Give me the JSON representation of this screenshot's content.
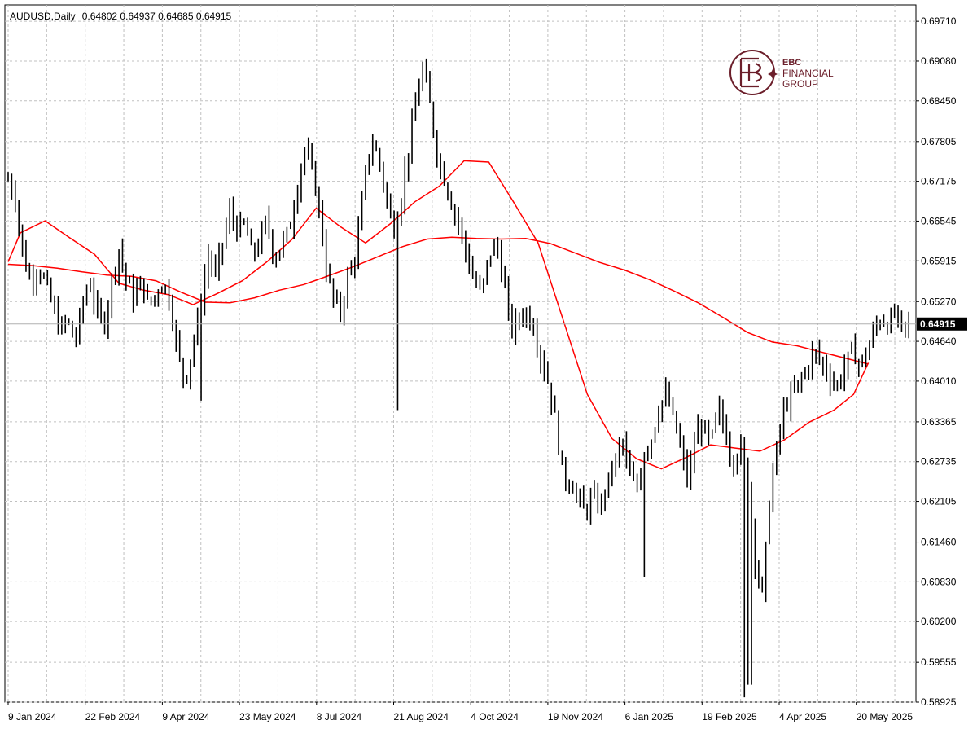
{
  "chart_data": {
    "type": "line",
    "title": "AUDUSD,Daily",
    "ohlc": "0.64802 0.64937 0.64685 0.64915",
    "current_price": 0.64915,
    "current_price_label": "0.64915",
    "ylim": [
      0.58925,
      0.6997
    ],
    "y_ticks": [
      "0.69710",
      "0.69080",
      "0.68450",
      "0.67805",
      "0.67175",
      "0.66545",
      "0.65915",
      "0.65270",
      "0.64640",
      "0.64010",
      "0.63365",
      "0.62735",
      "0.62105",
      "0.61460",
      "0.60830",
      "0.60200",
      "0.59555",
      "0.58925"
    ],
    "x_ticks": [
      "9 Jan 2024",
      "22 Feb 2024",
      "9 Apr 2024",
      "23 May 2024",
      "8 Jul 2024",
      "21 Aug 2024",
      "4 Oct 2024",
      "19 Nov 2024",
      "6 Jan 2025",
      "19 Feb 2025",
      "4 Apr 2025",
      "20 May 2025"
    ],
    "grid": true,
    "colors": {
      "bars": "#000000",
      "ma": "#ff0000",
      "grid": "#c0c0c0",
      "price_tag": "#000000",
      "logo": "#6b1e2a"
    },
    "price_path": [
      [
        0,
        0.672
      ],
      [
        3,
        0.669
      ],
      [
        6,
        0.66
      ],
      [
        9,
        0.656
      ],
      [
        12,
        0.658
      ],
      [
        15,
        0.656
      ],
      [
        18,
        0.652
      ],
      [
        21,
        0.648
      ],
      [
        24,
        0.65
      ],
      [
        27,
        0.646
      ],
      [
        30,
        0.652
      ],
      [
        33,
        0.656
      ],
      [
        36,
        0.651
      ],
      [
        39,
        0.649
      ],
      [
        42,
        0.656
      ],
      [
        45,
        0.661
      ],
      [
        48,
        0.656
      ],
      [
        51,
        0.653
      ],
      [
        54,
        0.656
      ],
      [
        57,
        0.652
      ],
      [
        60,
        0.654
      ],
      [
        63,
        0.656
      ],
      [
        66,
        0.652
      ],
      [
        69,
        0.644
      ],
      [
        72,
        0.64
      ],
      [
        75,
        0.646
      ],
      [
        78,
        0.652
      ],
      [
        81,
        0.66
      ],
      [
        84,
        0.657
      ],
      [
        87,
        0.662
      ],
      [
        90,
        0.667
      ],
      [
        93,
        0.664
      ],
      [
        96,
        0.665
      ],
      [
        99,
        0.66
      ],
      [
        102,
        0.662
      ],
      [
        105,
        0.666
      ],
      [
        108,
        0.659
      ],
      [
        111,
        0.662
      ],
      [
        114,
        0.664
      ],
      [
        117,
        0.67
      ],
      [
        120,
        0.677
      ],
      [
        123,
        0.674
      ],
      [
        126,
        0.668
      ],
      [
        129,
        0.658
      ],
      [
        132,
        0.653
      ],
      [
        135,
        0.651
      ],
      [
        138,
        0.657
      ],
      [
        141,
        0.66
      ],
      [
        144,
        0.67
      ],
      [
        147,
        0.678
      ],
      [
        150,
        0.676
      ],
      [
        153,
        0.67
      ],
      [
        156,
        0.664
      ],
      [
        159,
        0.668
      ],
      [
        162,
        0.676
      ],
      [
        165,
        0.683
      ],
      [
        168,
        0.69
      ],
      [
        171,
        0.684
      ],
      [
        174,
        0.676
      ],
      [
        177,
        0.672
      ],
      [
        180,
        0.668
      ],
      [
        183,
        0.665
      ],
      [
        186,
        0.66
      ],
      [
        189,
        0.656
      ],
      [
        192,
        0.654
      ],
      [
        195,
        0.66
      ],
      [
        198,
        0.662
      ],
      [
        201,
        0.656
      ],
      [
        204,
        0.648
      ],
      [
        207,
        0.65
      ],
      [
        210,
        0.651
      ],
      [
        213,
        0.649
      ],
      [
        216,
        0.644
      ],
      [
        219,
        0.64
      ],
      [
        222,
        0.634
      ],
      [
        225,
        0.625
      ],
      [
        228,
        0.624
      ],
      [
        231,
        0.622
      ],
      [
        234,
        0.619
      ],
      [
        237,
        0.622
      ],
      [
        240,
        0.62
      ],
      [
        243,
        0.624
      ],
      [
        246,
        0.627
      ],
      [
        249,
        0.631
      ],
      [
        252,
        0.625
      ],
      [
        255,
        0.623
      ],
      [
        258,
        0.629
      ],
      [
        261,
        0.631
      ],
      [
        264,
        0.636
      ],
      [
        267,
        0.638
      ],
      [
        270,
        0.634
      ],
      [
        273,
        0.629
      ],
      [
        276,
        0.624
      ],
      [
        279,
        0.632
      ],
      [
        282,
        0.633
      ],
      [
        285,
        0.63
      ],
      [
        288,
        0.636
      ],
      [
        291,
        0.632
      ],
      [
        294,
        0.627
      ],
      [
        297,
        0.63
      ],
      [
        300,
        0.625
      ],
      [
        303,
        0.612
      ],
      [
        306,
        0.606
      ],
      [
        309,
        0.622
      ],
      [
        312,
        0.63
      ],
      [
        315,
        0.636
      ],
      [
        318,
        0.638
      ],
      [
        321,
        0.64
      ],
      [
        324,
        0.642
      ],
      [
        327,
        0.645
      ],
      [
        330,
        0.643
      ],
      [
        333,
        0.641
      ],
      [
        336,
        0.639
      ],
      [
        339,
        0.642
      ],
      [
        342,
        0.645
      ],
      [
        345,
        0.643
      ],
      [
        348,
        0.644
      ],
      [
        351,
        0.648
      ],
      [
        354,
        0.65
      ],
      [
        357,
        0.649
      ],
      [
        360,
        0.651
      ],
      [
        363,
        0.648
      ],
      [
        365,
        0.6491
      ]
    ],
    "series": [
      {
        "name": "",
        "values": [
          [
            0,
            0.6586
          ],
          [
            10,
            0.6584
          ],
          [
            20,
            0.658
          ],
          [
            30,
            0.6574
          ],
          [
            40,
            0.6569
          ],
          [
            50,
            0.6567
          ],
          [
            60,
            0.656
          ],
          [
            70,
            0.6542
          ],
          [
            80,
            0.6526
          ],
          [
            90,
            0.6525
          ],
          [
            100,
            0.6533
          ],
          [
            110,
            0.6545
          ],
          [
            120,
            0.6554
          ],
          [
            130,
            0.6568
          ],
          [
            140,
            0.6582
          ],
          [
            150,
            0.6598
          ],
          [
            160,
            0.6614
          ],
          [
            170,
            0.6626
          ],
          [
            180,
            0.6629
          ],
          [
            190,
            0.6627
          ],
          [
            200,
            0.6626
          ],
          [
            210,
            0.6627
          ],
          [
            220,
            0.6619
          ],
          [
            230,
            0.6604
          ],
          [
            240,
            0.6589
          ],
          [
            250,
            0.6577
          ],
          [
            260,
            0.6562
          ],
          [
            270,
            0.6544
          ],
          [
            280,
            0.6525
          ],
          [
            290,
            0.6502
          ],
          [
            300,
            0.6478
          ],
          [
            310,
            0.6463
          ],
          [
            320,
            0.6457
          ],
          [
            330,
            0.6447
          ],
          [
            340,
            0.6437
          ],
          [
            349,
            0.6428
          ]
        ]
      },
      {
        "name": "",
        "values": [
          [
            0,
            0.659
          ],
          [
            5,
            0.6636
          ],
          [
            15,
            0.6655
          ],
          [
            25,
            0.6628
          ],
          [
            35,
            0.6602
          ],
          [
            45,
            0.6556
          ],
          [
            55,
            0.6545
          ],
          [
            65,
            0.6538
          ],
          [
            75,
            0.6522
          ],
          [
            85,
            0.654
          ],
          [
            95,
            0.656
          ],
          [
            105,
            0.659
          ],
          [
            115,
            0.6625
          ],
          [
            125,
            0.6675
          ],
          [
            135,
            0.6645
          ],
          [
            145,
            0.662
          ],
          [
            155,
            0.665
          ],
          [
            165,
            0.6685
          ],
          [
            175,
            0.671
          ],
          [
            185,
            0.675
          ],
          [
            195,
            0.6748
          ],
          [
            205,
            0.6685
          ],
          [
            215,
            0.662
          ],
          [
            225,
            0.65
          ],
          [
            235,
            0.638
          ],
          [
            245,
            0.631
          ],
          [
            255,
            0.6278
          ],
          [
            265,
            0.6262
          ],
          [
            275,
            0.628
          ],
          [
            285,
            0.63
          ],
          [
            295,
            0.6295
          ],
          [
            305,
            0.629
          ],
          [
            315,
            0.6308
          ],
          [
            325,
            0.6336
          ],
          [
            335,
            0.6355
          ],
          [
            343,
            0.638
          ],
          [
            349,
            0.643
          ]
        ]
      }
    ]
  },
  "logo": {
    "line1": "EBC",
    "line2": "FINANCIAL",
    "line3": "GROUP"
  }
}
